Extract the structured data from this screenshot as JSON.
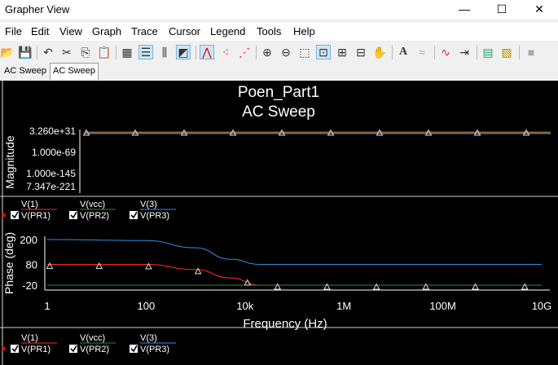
{
  "window": {
    "title": "Grapher View",
    "minimize": "—",
    "maximize": "☐",
    "close": "✕"
  },
  "menu": [
    "File",
    "Edit",
    "View",
    "Graph",
    "Trace",
    "Cursor",
    "Legend",
    "Tools",
    "Help"
  ],
  "toolbar": [
    {
      "name": "open-icon",
      "glyph": "📂"
    },
    {
      "name": "save-icon",
      "glyph": "💾"
    },
    {
      "name": "undo-icon",
      "glyph": "↶"
    },
    {
      "name": "cut-icon",
      "glyph": "✂"
    },
    {
      "name": "copy-icon",
      "glyph": "⎘"
    },
    {
      "name": "paste-icon",
      "glyph": "📋"
    },
    {
      "name": "grid-icon",
      "glyph": "▦"
    },
    {
      "name": "legend-icon",
      "glyph": "☰"
    },
    {
      "name": "cursors-icon",
      "glyph": "⫼"
    },
    {
      "name": "reverse-colors-icon",
      "glyph": "◩"
    },
    {
      "name": "line-icon",
      "glyph": "⋀"
    },
    {
      "name": "markers-icon",
      "glyph": "⁖"
    },
    {
      "name": "line-markers-icon",
      "glyph": "⋰"
    },
    {
      "name": "zoom-in-icon",
      "glyph": "⊕"
    },
    {
      "name": "zoom-out-icon",
      "glyph": "⊖"
    },
    {
      "name": "zoom-area-icon",
      "glyph": "⬚"
    },
    {
      "name": "zoom-full-icon",
      "glyph": "⊡"
    },
    {
      "name": "zoom-x-icon",
      "glyph": "⊞"
    },
    {
      "name": "zoom-y-icon",
      "glyph": "⊟"
    },
    {
      "name": "pan-icon",
      "glyph": "✋"
    },
    {
      "name": "text-icon",
      "glyph": "A"
    },
    {
      "name": "label-icon",
      "glyph": "≈"
    },
    {
      "name": "overlay-icon",
      "glyph": "∿"
    },
    {
      "name": "export-icon",
      "glyph": "⇥"
    },
    {
      "name": "excel-icon",
      "glyph": "▤"
    },
    {
      "name": "mathcad-icon",
      "glyph": "▧"
    },
    {
      "name": "stop-icon",
      "glyph": "■"
    }
  ],
  "tabs": [
    {
      "label": "AC Sweep",
      "selected": false
    },
    {
      "label": "AC Sweep",
      "selected": true
    }
  ],
  "graph": {
    "title": "Poen_Part1",
    "subtitle": "AC Sweep",
    "colors": {
      "v1": "#ff2a2a",
      "vcc": "#2e8b2e",
      "v3": "#2f8fe0",
      "axis": "#ffffff",
      "bg": "#000000"
    }
  },
  "chart_data": [
    {
      "type": "line",
      "ylabel": "Magnitude",
      "yscale": "log",
      "yticks": [
        "3.260e+31",
        "1.000e-69",
        "1.000e-145",
        "7.347e-221"
      ],
      "xscale": "log",
      "xlim": [
        1,
        10000000000
      ],
      "series": [
        {
          "name": "V(1)",
          "values": [
            [
              1,
              3.26e+31
            ],
            [
              10000000000,
              3.26e+31
            ]
          ]
        },
        {
          "name": "V(vcc)",
          "values": [
            [
              1,
              3.26e+31
            ],
            [
              10000000000,
              3.26e+31
            ]
          ]
        },
        {
          "name": "V(3)",
          "values": [
            [
              1,
              3.26e+31
            ],
            [
              10000000000,
              3.26e+31
            ]
          ]
        }
      ],
      "legend": [
        {
          "top": "V(1)",
          "bottom": "V(PR1)"
        },
        {
          "top": "V(vcc)",
          "bottom": "V(PR2)"
        },
        {
          "top": "V(3)",
          "bottom": "V(PR3)"
        }
      ]
    },
    {
      "type": "line",
      "ylabel": "Phase (deg)",
      "yticks": [
        "200",
        "80",
        "-20"
      ],
      "ylim": [
        -20,
        200
      ],
      "xlabel": "Frequency (Hz)",
      "xticks": [
        "1",
        "100",
        "10k",
        "1M",
        "100M",
        "10G"
      ],
      "xscale": "log",
      "xlim": [
        1,
        10000000000
      ],
      "series": [
        {
          "name": "V(1)",
          "values": [
            [
              1,
              80
            ],
            [
              100,
              80
            ],
            [
              1000,
              55
            ],
            [
              5000,
              15
            ],
            [
              20000,
              -20
            ],
            [
              10000000000,
              -20
            ]
          ]
        },
        {
          "name": "V(vcc)",
          "values": [
            [
              1,
              -20
            ],
            [
              10000000000,
              -20
            ]
          ]
        },
        {
          "name": "V(3)",
          "values": [
            [
              1,
              200
            ],
            [
              100,
              195
            ],
            [
              1000,
              160
            ],
            [
              5000,
              105
            ],
            [
              20000,
              80
            ],
            [
              10000000000,
              80
            ]
          ]
        }
      ],
      "legend": [
        {
          "top": "V(1)",
          "bottom": "V(PR1)"
        },
        {
          "top": "V(vcc)",
          "bottom": "V(PR2)"
        },
        {
          "top": "V(3)",
          "bottom": "V(PR3)"
        }
      ]
    }
  ]
}
